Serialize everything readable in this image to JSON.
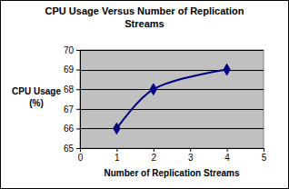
{
  "chart_data": {
    "type": "line",
    "title": "CPU Usage Versus Number of Replication Streams",
    "x_label": "Number of Replication Streams",
    "y_label": "CPU Usage (%)",
    "x": [
      1,
      2,
      4
    ],
    "values": [
      66,
      68,
      69
    ],
    "color": "#000080",
    "marker": "diamond",
    "line_style": "solid",
    "xlim": [
      0,
      5
    ],
    "xticks": [
      0,
      1,
      2,
      3,
      4,
      5
    ],
    "ylim": [
      65,
      70
    ],
    "yticks": [
      65,
      66,
      67,
      68,
      69,
      70
    ],
    "grid": true
  }
}
